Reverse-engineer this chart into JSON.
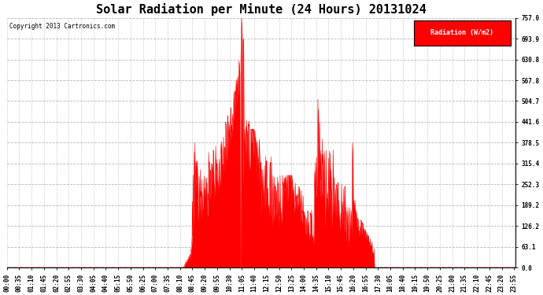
{
  "title": "Solar Radiation per Minute (24 Hours) 20131024",
  "ylabel": "Radiation (W/m2)",
  "copyright_text": "Copyright 2013 Cartronics.com",
  "bg_color": "#ffffff",
  "plot_bg_color": "#ffffff",
  "fill_color": "#ff0000",
  "line_color": "#ff0000",
  "grid_color": "#888888",
  "zero_line_color": "#ff0000",
  "ylim": [
    0,
    757.0
  ],
  "yticks": [
    0.0,
    63.1,
    126.2,
    189.2,
    252.3,
    315.4,
    378.5,
    441.6,
    504.7,
    567.8,
    630.8,
    693.9,
    757.0
  ],
  "title_fontsize": 11,
  "tick_fontsize": 5.5,
  "copyright_fontsize": 5.5,
  "legend_fontsize": 6.0
}
